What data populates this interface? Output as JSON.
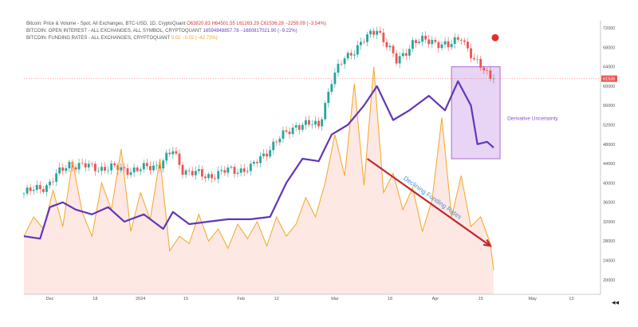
{
  "legend": {
    "price": {
      "title": "Bitcoin: Price & Volume - Spot, All Exchanges, BTC-USD, 1D, CryptoQuant",
      "values": "O63820.83  H64501.55  L61263.29  C61536.28  −2259.09 (−3.54%)"
    },
    "open_interest": {
      "title": "BITCOIN: OPEN INTEREST - ALL EXCHANGES, ALL SYMBOL, CRYPTOQUANT",
      "values": "16594848857.78  −1680817021.90 (−9.22%)"
    },
    "funding": {
      "title": "BITCOIN: FUNDING RATES - ALL EXCHANGES, CRYPTOQUANT",
      "values": "0.02  −0.02 (−42.72%)"
    }
  },
  "annotations": {
    "box_label": "Derivative Uncertainty",
    "arrow_label": "Declining Funding Rates"
  },
  "price_tag": "61536",
  "nav_arrows": "◂◂",
  "colors": {
    "up": "#26a69a",
    "down": "#ef5350",
    "oi": "#6236b8",
    "funding": "#f5a623",
    "funding_fill": "#fde8e4",
    "box": "#e4cdf2",
    "box_border": "#a86cd0",
    "arrow": "#c0282d",
    "annot_text": "#8a4fc8",
    "arrow_text": "#4a90d9"
  },
  "chart_data": {
    "type": "line",
    "title": "",
    "x_ticks": [
      "Dec",
      "18",
      "2024",
      "15",
      "Feb",
      "12",
      "Mar",
      "18",
      "Apr",
      "15",
      "May",
      "13"
    ],
    "y_ticks": [
      20000,
      24000,
      28000,
      32000,
      36000,
      40000,
      44000,
      48000,
      52000,
      56000,
      60000,
      64000,
      68000,
      72000
    ],
    "ylim": [
      17000,
      73500
    ],
    "x_range": [
      "2023-11-26",
      "2024-05-22"
    ],
    "series": [
      {
        "name": "Bitcoin: Price & Volume - Spot, All Exchanges, BTC-USD, 1D, CryptoQuant",
        "kind": "close",
        "dates": [
          "2023-11-26",
          "2023-12-03",
          "2023-12-10",
          "2023-12-17",
          "2023-12-24",
          "2023-12-31",
          "2024-01-07",
          "2024-01-11",
          "2024-01-14",
          "2024-01-21",
          "2024-01-28",
          "2024-02-04",
          "2024-02-11",
          "2024-02-18",
          "2024-02-25",
          "2024-02-29",
          "2024-03-04",
          "2024-03-08",
          "2024-03-14",
          "2024-03-20",
          "2024-03-25",
          "2024-03-31",
          "2024-04-05",
          "2024-04-09",
          "2024-04-13",
          "2024-04-16",
          "2024-04-19"
        ],
        "values": [
          37800,
          39500,
          44000,
          43200,
          43000,
          42600,
          44000,
          46500,
          42800,
          41300,
          42500,
          43000,
          48000,
          52000,
          52000,
          61000,
          66000,
          68000,
          72000,
          65000,
          69000,
          69500,
          68000,
          70500,
          65000,
          63500,
          61536
        ]
      },
      {
        "name": "BITCOIN: OPEN INTEREST - ALL EXCHANGES, ALL SYMBOL, CRYPTOQUANT",
        "kind": "line",
        "dates": [
          "2023-11-26",
          "2023-12-01",
          "2023-12-04",
          "2023-12-08",
          "2023-12-12",
          "2023-12-17",
          "2023-12-22",
          "2023-12-27",
          "2024-01-02",
          "2024-01-08",
          "2024-01-11",
          "2024-01-16",
          "2024-01-22",
          "2024-01-28",
          "2024-02-04",
          "2024-02-10",
          "2024-02-15",
          "2024-02-20",
          "2024-02-25",
          "2024-02-29",
          "2024-03-05",
          "2024-03-10",
          "2024-03-14",
          "2024-03-19",
          "2024-03-24",
          "2024-03-30",
          "2024-04-04",
          "2024-04-08",
          "2024-04-12",
          "2024-04-14",
          "2024-04-17",
          "2024-04-19"
        ],
        "values": [
          29000,
          28500,
          35000,
          36000,
          34500,
          33500,
          35000,
          32000,
          33500,
          30500,
          34000,
          31500,
          32000,
          32500,
          32500,
          33000,
          40000,
          45000,
          44500,
          50000,
          52000,
          56000,
          60000,
          53000,
          55000,
          58000,
          55000,
          61000,
          56000,
          48000,
          48500,
          47300
        ]
      },
      {
        "name": "BITCOIN: FUNDING RATES - ALL EXCHANGES, CRYPTOQUANT",
        "kind": "line",
        "dates": [
          "2023-11-26",
          "2023-11-29",
          "2023-12-02",
          "2023-12-05",
          "2023-12-08",
          "2023-12-11",
          "2023-12-14",
          "2023-12-17",
          "2023-12-20",
          "2023-12-23",
          "2023-12-26",
          "2023-12-29",
          "2024-01-01",
          "2024-01-04",
          "2024-01-07",
          "2024-01-10",
          "2024-01-13",
          "2024-01-16",
          "2024-01-19",
          "2024-01-22",
          "2024-01-25",
          "2024-01-28",
          "2024-01-31",
          "2024-02-03",
          "2024-02-06",
          "2024-02-09",
          "2024-02-12",
          "2024-02-15",
          "2024-02-18",
          "2024-02-21",
          "2024-02-24",
          "2024-02-27",
          "2024-03-01",
          "2024-03-04",
          "2024-03-07",
          "2024-03-10",
          "2024-03-13",
          "2024-03-16",
          "2024-03-19",
          "2024-03-22",
          "2024-03-25",
          "2024-03-28",
          "2024-03-31",
          "2024-04-03",
          "2024-04-06",
          "2024-04-09",
          "2024-04-12",
          "2024-04-15",
          "2024-04-18",
          "2024-04-19"
        ],
        "values": [
          29000,
          33000,
          30500,
          38500,
          31000,
          44500,
          34000,
          29000,
          40000,
          34500,
          47000,
          30000,
          38000,
          32500,
          45000,
          26000,
          29000,
          27500,
          33500,
          28000,
          30500,
          26500,
          31500,
          28500,
          32000,
          27000,
          33000,
          29000,
          31500,
          37000,
          33000,
          40000,
          50000,
          41500,
          60500,
          39500,
          64000,
          38000,
          42000,
          34500,
          39000,
          30000,
          36500,
          53500,
          33000,
          41500,
          31000,
          33000,
          27500,
          22000
        ]
      }
    ],
    "annotations": [
      {
        "text": "Derivative Uncertainty",
        "kind": "box",
        "from": "2024-04-06",
        "to": "2024-04-21",
        "y_from": 45000,
        "y_to": 64000
      },
      {
        "text": "Declining Funding Rates",
        "kind": "arrow",
        "from": [
          "2024-03-11",
          45000
        ],
        "to": [
          "2024-04-18",
          27000
        ]
      }
    ],
    "grid": false,
    "legend_position": "top-left"
  }
}
